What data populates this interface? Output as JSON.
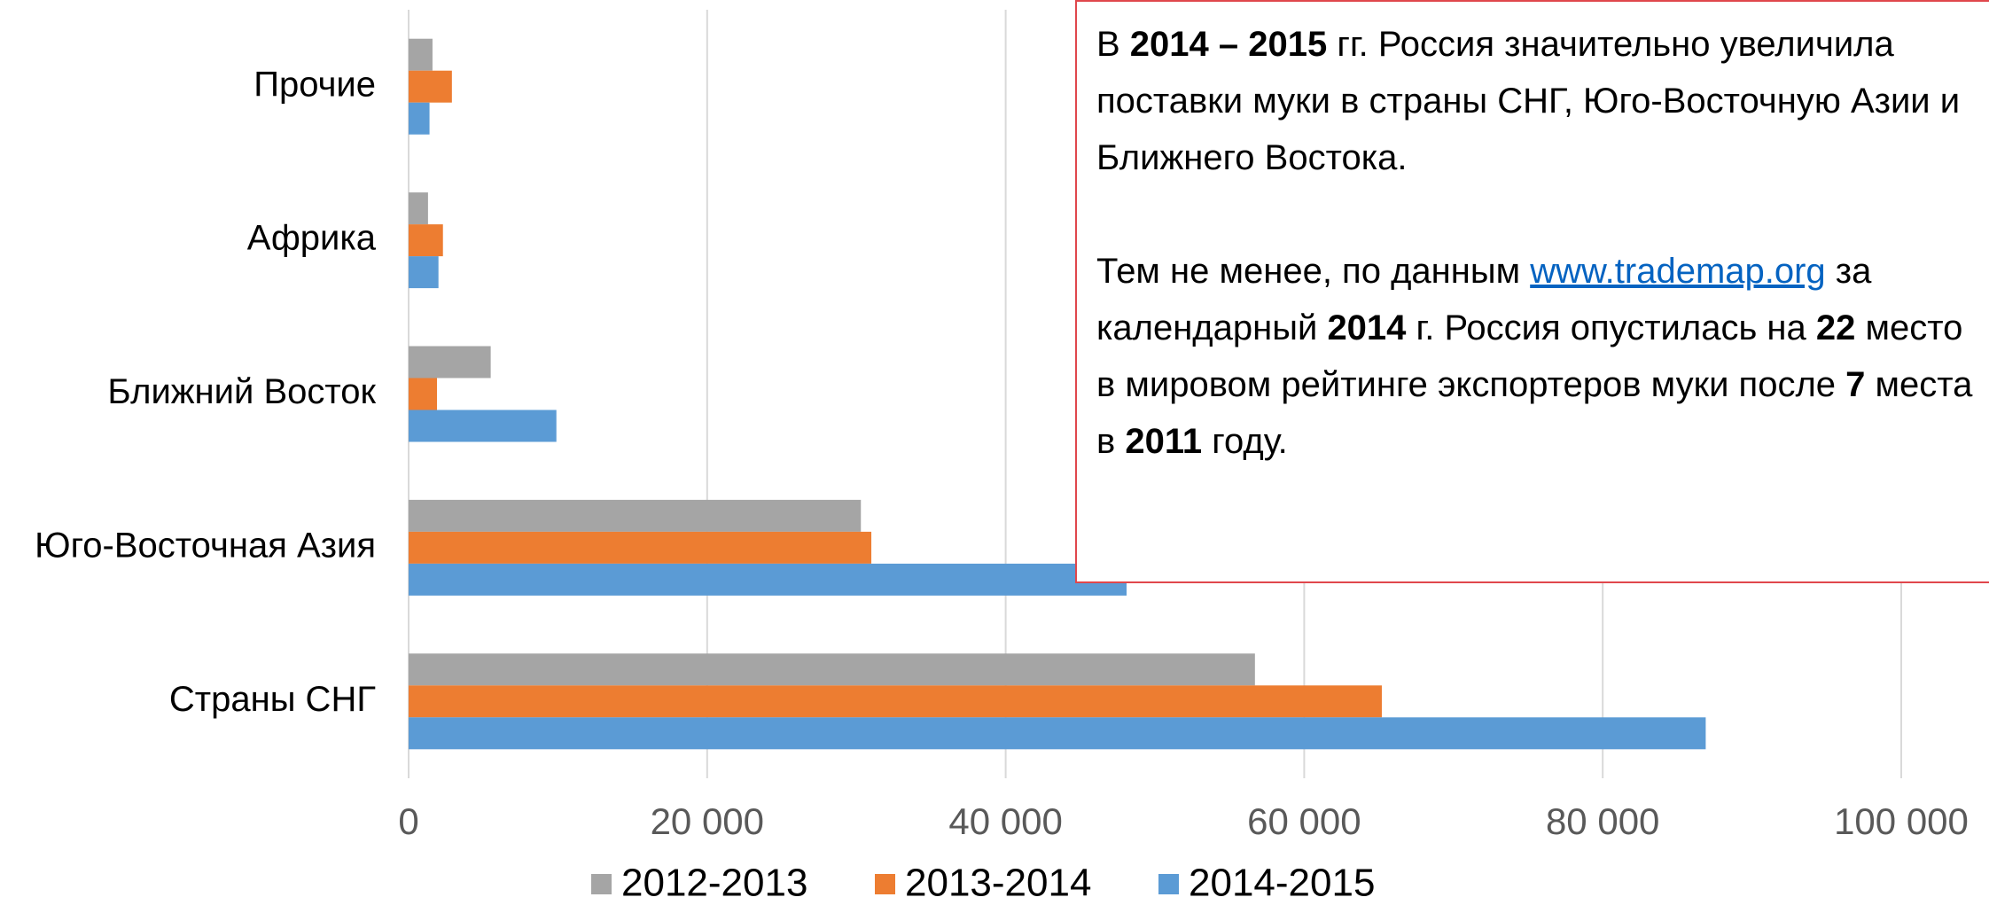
{
  "chart_data": {
    "type": "barh",
    "categories": [
      "Страны СНГ",
      "Юго-Восточная Азия",
      "Ближний Восток",
      "Африка",
      "Прочие"
    ],
    "series": [
      {
        "name": "2012-2013",
        "color": "#a5a5a5",
        "values": [
          56700,
          30300,
          5500,
          1300,
          1600
        ]
      },
      {
        "name": "2013-2014",
        "color": "#ed7d31",
        "values": [
          65200,
          31000,
          1900,
          2300,
          2900
        ]
      },
      {
        "name": "2014-2015",
        "color": "#5b9bd5",
        "values": [
          86900,
          48100,
          9900,
          2000,
          1400
        ]
      }
    ],
    "xlim": [
      0,
      100000
    ],
    "xticks": [
      0,
      {
        "value": 20000,
        "label": "20 000"
      },
      {
        "value": 40000,
        "label": "40 000"
      },
      {
        "value": 60000,
        "label": "60 000"
      },
      {
        "value": 80000,
        "label": "80 000"
      },
      {
        "value": 100000,
        "label": "100 000"
      }
    ],
    "grid": true,
    "legend": "bottom",
    "annotation": [
      [
        {
          "text": "В "
        },
        {
          "text": "2014 – 2015",
          "bold": true
        },
        {
          "text": " гг. Россия значительно увеличила поставки муки в страны СНГ, Юго-Восточную Азии и  Ближнего Востока."
        }
      ],
      [
        {
          "text": "Тем не менее, по данным "
        },
        {
          "text": "www.trademap.org",
          "link": true
        },
        {
          "text": " за календарный "
        },
        {
          "text": "2014",
          "bold": true
        },
        {
          "text": " г. Россия опустилась на "
        },
        {
          "text": "22",
          "bold": true
        },
        {
          "text": " место в мировом рейтинге экспортеров муки после "
        },
        {
          "text": "7",
          "bold": true
        },
        {
          "text": " места в "
        },
        {
          "text": "2011",
          "bold": true
        },
        {
          "text": " году."
        }
      ]
    ]
  }
}
